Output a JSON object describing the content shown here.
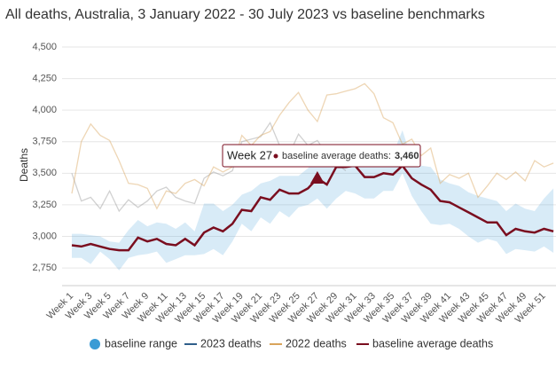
{
  "chart_data": {
    "type": "line",
    "title": "All deaths, Australia, 3 January 2022 - 30 July 2023 vs baseline benchmarks",
    "y_label": "Deaths",
    "categories": [
      "Week 1",
      null,
      "Week 3",
      null,
      "Week 5",
      null,
      "Week 7",
      null,
      "Week 9",
      null,
      "Week 11",
      null,
      "Week 13",
      null,
      "Week 15",
      null,
      "Week 17",
      null,
      "Week 19",
      null,
      "Week 21",
      null,
      "Week 23",
      null,
      "Week 25",
      null,
      "Week 27",
      null,
      "Week 29",
      null,
      "Week 31",
      null,
      "Week 33",
      null,
      "Week 35",
      null,
      "Week 37",
      null,
      "Week 39",
      null,
      "Week 41",
      null,
      "Week 43",
      null,
      "Week 45",
      null,
      "Week 47",
      null,
      "Week 49",
      null,
      "Week 51",
      null
    ],
    "ylim": [
      2610,
      4500
    ],
    "yticks": [
      {
        "value": 2750,
        "label": "2,750"
      },
      {
        "value": 3000,
        "label": "3,000"
      },
      {
        "value": 3250,
        "label": "3,250"
      },
      {
        "value": 3500,
        "label": "3,500"
      },
      {
        "value": 3750,
        "label": "3,750"
      },
      {
        "value": 4000,
        "label": "4,000"
      },
      {
        "value": 4250,
        "label": "4,250"
      },
      {
        "value": 4500,
        "label": "4,500"
      }
    ],
    "grid": true,
    "series": [
      {
        "name": "baseline range",
        "color": "#3a9bd5",
        "lower": [
          2830,
          2830,
          2780,
          2880,
          2820,
          2730,
          2830,
          2850,
          2860,
          2880,
          2790,
          2820,
          2850,
          2850,
          2860,
          2900,
          2850,
          2960,
          3100,
          3040,
          3150,
          3100,
          3200,
          3150,
          3230,
          3250,
          3300,
          3220,
          3300,
          3360,
          3340,
          3300,
          3300,
          3360,
          3360,
          3500,
          3320,
          3200,
          3100,
          3090,
          3100,
          3060,
          3000,
          2950,
          2980,
          2960,
          2860,
          2900,
          2890,
          2880,
          2920,
          2870
        ],
        "upper": [
          3020,
          3020,
          3010,
          3000,
          2960,
          2950,
          3050,
          3130,
          3080,
          3110,
          3100,
          3060,
          3110,
          3040,
          3260,
          3260,
          3200,
          3250,
          3330,
          3360,
          3420,
          3440,
          3480,
          3480,
          3480,
          3540,
          3610,
          3600,
          3620,
          3680,
          3700,
          3630,
          3630,
          3700,
          3650,
          3840,
          3610,
          3560,
          3550,
          3450,
          3420,
          3400,
          3350,
          3320,
          3300,
          3280,
          3200,
          3260,
          3220,
          3200,
          3300,
          3380
        ]
      },
      {
        "name": "2023 deaths",
        "color": "#2f5f8a",
        "values": [
          3500,
          3280,
          3310,
          3220,
          3360,
          3200,
          3290,
          3230,
          3280,
          3360,
          3390,
          3310,
          3280,
          3260,
          3460,
          3510,
          3480,
          3520,
          3750,
          3770,
          3790,
          3900,
          3720,
          3650,
          3810,
          3720,
          3760,
          3650,
          3580,
          3520,
          null,
          null,
          null,
          null,
          null,
          null,
          null,
          null,
          null,
          null,
          null,
          null,
          null,
          null,
          null,
          null,
          null,
          null,
          null,
          null,
          null,
          null
        ]
      },
      {
        "name": "2022 deaths",
        "color": "#d9a45b",
        "values": [
          3340,
          3750,
          3890,
          3800,
          3760,
          3600,
          3420,
          3410,
          3380,
          3220,
          3360,
          3340,
          3420,
          3450,
          3400,
          3550,
          3510,
          3550,
          3800,
          3720,
          3800,
          3830,
          3960,
          4060,
          4140,
          4000,
          3910,
          4120,
          4130,
          4150,
          4170,
          4210,
          4130,
          3940,
          3900,
          3730,
          3770,
          3640,
          3700,
          3420,
          3490,
          3460,
          3500,
          3310,
          3400,
          3500,
          3450,
          3510,
          3440,
          3600,
          3550,
          3580
        ]
      },
      {
        "name": "baseline average deaths",
        "color": "#7a0e1f",
        "values": [
          2930,
          2920,
          2940,
          2920,
          2900,
          2890,
          2890,
          2990,
          2960,
          2980,
          2940,
          2930,
          2980,
          2930,
          3030,
          3070,
          3040,
          3100,
          3210,
          3200,
          3310,
          3290,
          3370,
          3340,
          3340,
          3380,
          3460,
          3410,
          3550,
          3550,
          3560,
          3470,
          3470,
          3500,
          3490,
          3560,
          3460,
          3410,
          3370,
          3280,
          3270,
          3230,
          3190,
          3150,
          3110,
          3110,
          3010,
          3060,
          3040,
          3030,
          3060,
          3040
        ]
      }
    ],
    "tooltip": {
      "title": "Week 27",
      "label": "baseline average deaths:",
      "value_label": "3,460"
    }
  }
}
